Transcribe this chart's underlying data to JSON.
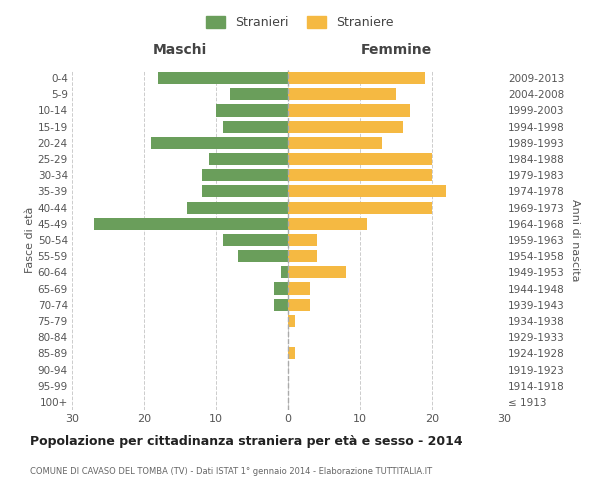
{
  "age_groups": [
    "100+",
    "95-99",
    "90-94",
    "85-89",
    "80-84",
    "75-79",
    "70-74",
    "65-69",
    "60-64",
    "55-59",
    "50-54",
    "45-49",
    "40-44",
    "35-39",
    "30-34",
    "25-29",
    "20-24",
    "15-19",
    "10-14",
    "5-9",
    "0-4"
  ],
  "birth_years": [
    "≤ 1913",
    "1914-1918",
    "1919-1923",
    "1924-1928",
    "1929-1933",
    "1934-1938",
    "1939-1943",
    "1944-1948",
    "1949-1953",
    "1954-1958",
    "1959-1963",
    "1964-1968",
    "1969-1973",
    "1974-1978",
    "1979-1983",
    "1984-1988",
    "1989-1993",
    "1994-1998",
    "1999-2003",
    "2004-2008",
    "2009-2013"
  ],
  "maschi": [
    0,
    0,
    0,
    0,
    0,
    0,
    2,
    2,
    1,
    7,
    9,
    27,
    14,
    12,
    12,
    11,
    19,
    9,
    10,
    8,
    18
  ],
  "femmine": [
    0,
    0,
    0,
    1,
    0,
    1,
    3,
    3,
    8,
    4,
    4,
    11,
    20,
    22,
    20,
    20,
    13,
    16,
    17,
    15,
    19
  ],
  "color_maschi": "#6a9e5b",
  "color_femmine": "#f5b942",
  "title": "Popolazione per cittadinanza straniera per età e sesso - 2014",
  "subtitle": "COMUNE DI CAVASO DEL TOMBA (TV) - Dati ISTAT 1° gennaio 2014 - Elaborazione TUTTITALIA.IT",
  "xlabel_left": "Maschi",
  "xlabel_right": "Femmine",
  "ylabel_left": "Fasce di età",
  "ylabel_right": "Anni di nascita",
  "legend_maschi": "Stranieri",
  "legend_femmine": "Straniere",
  "xlim": 30,
  "background_color": "#ffffff",
  "grid_color": "#cccccc"
}
